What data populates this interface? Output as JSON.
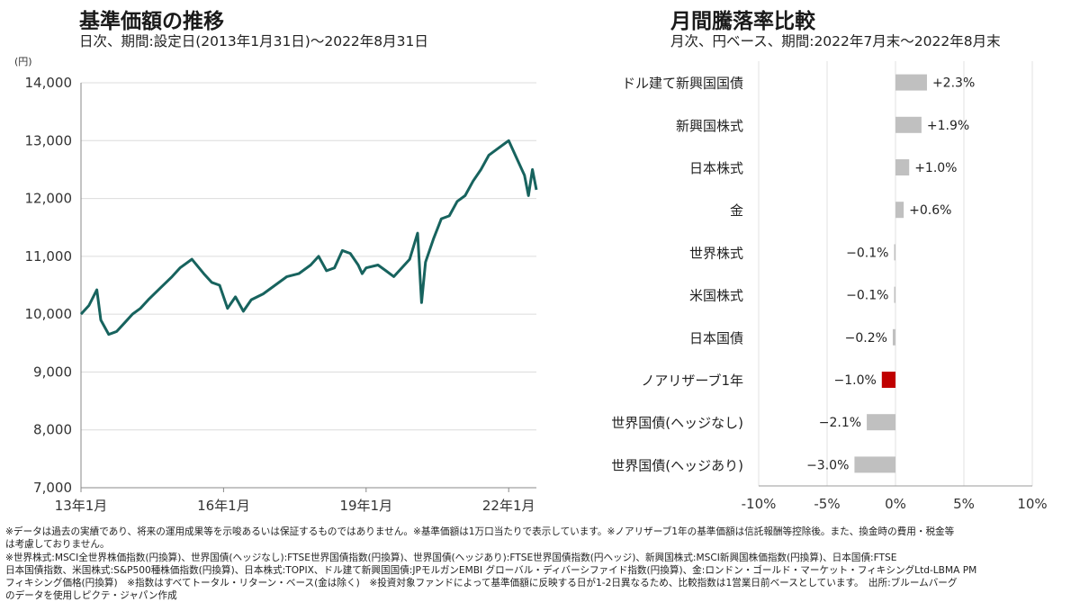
{
  "left_panel": {
    "title": "基準価額の推移",
    "subtitle": "日次、期間:設定日(2013年1月31日)～2022年8月31日"
  },
  "right_panel": {
    "title": "月間騰落率比較",
    "subtitle": "月次、円ベース、期間:2022年7月末～2022年8月末"
  },
  "chart_data": [
    {
      "type": "line",
      "title": "基準価額の推移",
      "y_unit": "(円)",
      "ylim": [
        7000,
        14000
      ],
      "y_ticks": [
        "7,000",
        "8,000",
        "9,000",
        "10,000",
        "11,000",
        "12,000",
        "13,000",
        "14,000"
      ],
      "x_tick_labels": [
        "13年1月",
        "16年1月",
        "19年1月",
        "22年1月"
      ],
      "x_tick_dates": [
        "2013-01",
        "2016-01",
        "2019-01",
        "2022-01"
      ],
      "grid": "horizontal",
      "series": [
        {
          "color": "#17635e",
          "x": [
            "2013-01",
            "2013-03",
            "2013-05",
            "2013-06",
            "2013-08",
            "2013-10",
            "2013-12",
            "2014-02",
            "2014-04",
            "2014-06",
            "2014-09",
            "2014-12",
            "2015-02",
            "2015-05",
            "2015-08",
            "2015-10",
            "2015-12",
            "2016-02",
            "2016-04",
            "2016-06",
            "2016-08",
            "2016-11",
            "2017-02",
            "2017-05",
            "2017-08",
            "2017-11",
            "2018-01",
            "2018-03",
            "2018-05",
            "2018-07",
            "2018-09",
            "2018-11",
            "2018-12",
            "2019-01",
            "2019-04",
            "2019-06",
            "2019-08",
            "2019-10",
            "2019-12",
            "2020-02",
            "2020-03",
            "2020-04",
            "2020-06",
            "2020-08",
            "2020-10",
            "2020-12",
            "2021-02",
            "2021-04",
            "2021-06",
            "2021-08",
            "2021-10",
            "2021-12",
            "2022-01",
            "2022-03",
            "2022-05",
            "2022-06",
            "2022-07",
            "2022-08"
          ],
          "values": [
            10000,
            10150,
            10420,
            9900,
            9650,
            9700,
            9850,
            10000,
            10100,
            10250,
            10450,
            10650,
            10800,
            10950,
            10700,
            10550,
            10500,
            10100,
            10300,
            10050,
            10250,
            10350,
            10500,
            10650,
            10700,
            10850,
            11000,
            10750,
            10800,
            11100,
            11050,
            10850,
            10700,
            10800,
            10850,
            10750,
            10650,
            10800,
            10950,
            11400,
            10200,
            10900,
            11300,
            11650,
            11700,
            11950,
            12050,
            12300,
            12500,
            12750,
            12850,
            12950,
            13000,
            12700,
            12400,
            12050,
            12500,
            12150
          ]
        }
      ]
    },
    {
      "type": "bar",
      "orientation": "horizontal",
      "title": "月間騰落率比較",
      "xlim": [
        -10,
        10
      ],
      "x_ticks": [
        "-10%",
        "-5%",
        "0%",
        "5%",
        "10%"
      ],
      "grid": "vertical",
      "categories": [
        "ドル建て新興国国債",
        "新興国株式",
        "日本株式",
        "金",
        "世界株式",
        "米国株式",
        "日本国債",
        "ノアリザーブ1年",
        "世界国債(ヘッジなし)",
        "世界国債(ヘッジあり)"
      ],
      "values": [
        2.3,
        1.9,
        1.0,
        0.6,
        -0.1,
        -0.1,
        -0.2,
        -1.0,
        -2.1,
        -3.0
      ],
      "value_labels": [
        "+2.3%",
        "+1.9%",
        "+1.0%",
        "+0.6%",
        "−0.1%",
        "−0.1%",
        "−0.2%",
        "−1.0%",
        "−2.1%",
        "−3.0%"
      ],
      "colors": {
        "default": "#c0c0c0",
        "highlight": "#c00000"
      },
      "highlight_category": "ノアリザーブ1年"
    }
  ],
  "notes": [
    "※データは過去の実績であり、将来の運用成果等を示唆あるいは保証するものではありません。※基準価額は1万口当たりで表示しています。※ノアリザーブ1年の基準価額は信託報酬等控除後。また、換金時の費用・税金等",
    "は考慮しておりません。",
    "※世界株式:MSCI全世界株価指数(円換算)、世界国債(ヘッジなし):FTSE世界国債指数(円換算)、世界国債(ヘッジあり):FTSE世界国債指数(円ヘッジ)、新興国株式:MSCI新興国株価指数(円換算)、日本国債:FTSE",
    "日本国債指数、米国株式:S&P500種株価指数(円換算)、日本株式:TOPIX、ドル建て新興国国債:JPモルガンEMBI グローバル・ディバーシファイド指数(円換算)、金:ロンドン・ゴールド・マーケット・フィキシングLtd-LBMA PM",
    "フィキシング価格(円換算)　※指数はすべてトータル・リターン・ベース(金は除く)　※投資対象ファンドによって基準価額に反映する日が1-2日異なるため、比較指数は1営業日前ベースとしています。　出所:ブルームバーグ",
    "のデータを使用しピクテ・ジャパン作成"
  ]
}
